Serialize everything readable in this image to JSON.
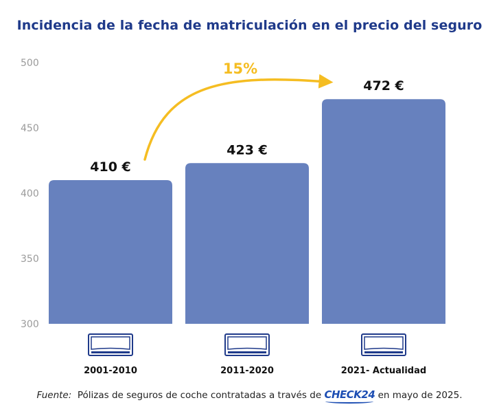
{
  "title": "Incidencia de la fecha de matriculación en el precio del seguro",
  "chart_data": {
    "type": "bar",
    "title": "Incidencia de la fecha de matriculación en el precio del seguro",
    "categories": [
      "2001-2010",
      "2011-2020",
      "2021- Actualidad"
    ],
    "values": [
      410,
      423,
      472
    ],
    "value_labels": [
      "410 €",
      "423 €",
      "472 €"
    ],
    "ylim": [
      300,
      500
    ],
    "yticks": [
      300,
      350,
      400,
      450,
      500
    ],
    "grid": false,
    "xlabel": "",
    "ylabel": "",
    "annotation": {
      "text": "15%",
      "from_category": "2001-2010",
      "to_category": "2021- Actualidad"
    }
  },
  "icons": {
    "category_icon": "license-plate-icon",
    "arrow": "curved-arrow-icon"
  },
  "colors": {
    "bar": "#6781be",
    "title": "#1f3a8a",
    "arrow": "#f5bd22",
    "plate": "#1f3a8a",
    "brand": "#1d4eb3"
  },
  "footer": {
    "source_label": "Fuente:",
    "text_before": "Pólizas de seguros de coche contratadas a través de",
    "brand": "CHECK24",
    "text_after": "en mayo de 2025."
  }
}
